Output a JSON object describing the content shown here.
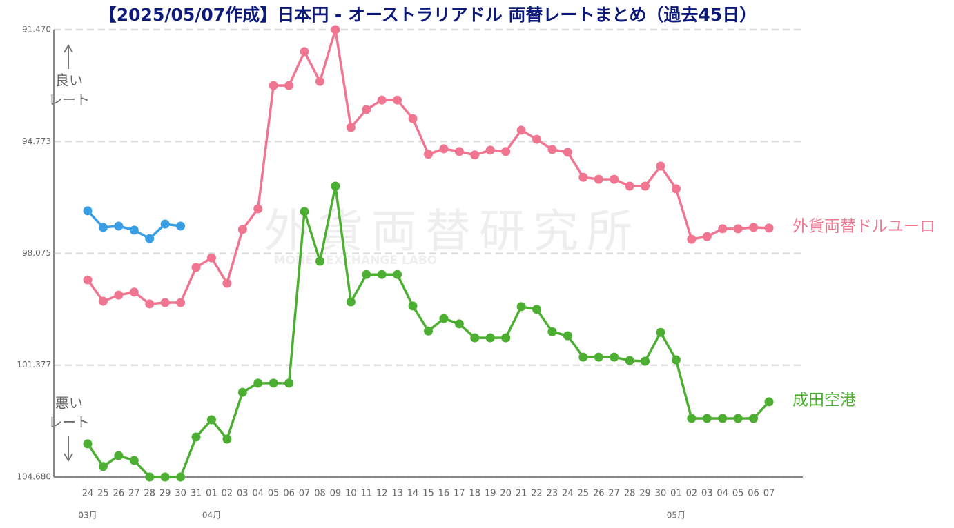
{
  "chart_data": {
    "type": "line",
    "title": "【2025/05/07作成】日本円 - オーストラリアドル 両替レートまとめ（過去45日）",
    "categories": [
      "24",
      "25",
      "26",
      "27",
      "28",
      "29",
      "30",
      "31",
      "01",
      "02",
      "03",
      "04",
      "05",
      "06",
      "07",
      "08",
      "09",
      "10",
      "11",
      "12",
      "13",
      "14",
      "15",
      "16",
      "17",
      "18",
      "19",
      "20",
      "21",
      "22",
      "23",
      "24",
      "25",
      "26",
      "27",
      "28",
      "29",
      "30",
      "01",
      "02",
      "03",
      "04",
      "05",
      "06",
      "07"
    ],
    "month_labels": [
      "03月",
      null,
      null,
      null,
      null,
      null,
      null,
      null,
      "04月",
      null,
      null,
      null,
      null,
      null,
      null,
      null,
      null,
      null,
      null,
      null,
      null,
      null,
      null,
      null,
      null,
      null,
      null,
      null,
      null,
      null,
      null,
      null,
      null,
      null,
      null,
      null,
      null,
      null,
      "05月",
      null,
      null,
      null,
      null,
      null,
      null
    ],
    "series": [
      {
        "color": "#3a9ee4",
        "values": [
          96.82,
          97.31,
          97.27,
          97.39,
          97.64,
          97.21,
          97.27,
          null,
          null,
          null,
          null,
          null,
          null,
          null,
          null,
          null,
          null,
          null,
          null,
          null,
          null,
          null,
          null,
          null,
          null,
          null,
          null,
          null,
          null,
          null,
          null,
          null,
          null,
          null,
          null,
          null,
          null,
          null,
          null,
          null,
          null,
          null,
          null,
          null,
          null
        ]
      },
      {
        "name": "外貨両替ドルユーロ",
        "color": "#f07590",
        "values": [
          98.86,
          99.49,
          99.31,
          99.22,
          99.57,
          99.53,
          99.53,
          98.49,
          98.21,
          98.96,
          97.37,
          96.76,
          93.12,
          93.12,
          92.12,
          93.0,
          91.47,
          94.36,
          93.83,
          93.55,
          93.55,
          94.1,
          95.15,
          94.99,
          95.07,
          95.17,
          95.03,
          95.07,
          94.44,
          94.71,
          95.01,
          95.09,
          95.83,
          95.89,
          95.89,
          96.09,
          96.09,
          95.5,
          96.17,
          97.66,
          97.58,
          97.35,
          97.35,
          97.31,
          97.33
        ]
      },
      {
        "name": "成田空港",
        "color": "#4caf32",
        "values": [
          103.7,
          104.37,
          104.05,
          104.19,
          104.68,
          104.68,
          104.68,
          103.5,
          102.99,
          103.56,
          102.18,
          101.91,
          101.91,
          101.91,
          96.84,
          98.31,
          96.09,
          99.51,
          98.7,
          98.7,
          98.7,
          99.63,
          100.37,
          100.0,
          100.16,
          100.57,
          100.57,
          100.57,
          99.65,
          99.73,
          100.39,
          100.51,
          101.14,
          101.14,
          101.14,
          101.24,
          101.26,
          100.41,
          101.22,
          102.95,
          102.95,
          102.95,
          102.95,
          102.95,
          102.46
        ]
      }
    ],
    "ylim": [
      91.47,
      104.68
    ],
    "y_inverted": true,
    "yticks": [
      {
        "value": 91.47,
        "label": "91.470"
      },
      94.773,
      98.075,
      101.377,
      {
        "value": 104.68,
        "label": "104.680"
      }
    ],
    "grid": true,
    "annotations": {
      "good": "良い",
      "good_rate": "レート",
      "bad": "悪い",
      "bad_rate": "レート"
    },
    "watermark": "外貨両替研究所",
    "watermark_sub": "MONEY EXCHANGE LABO"
  }
}
